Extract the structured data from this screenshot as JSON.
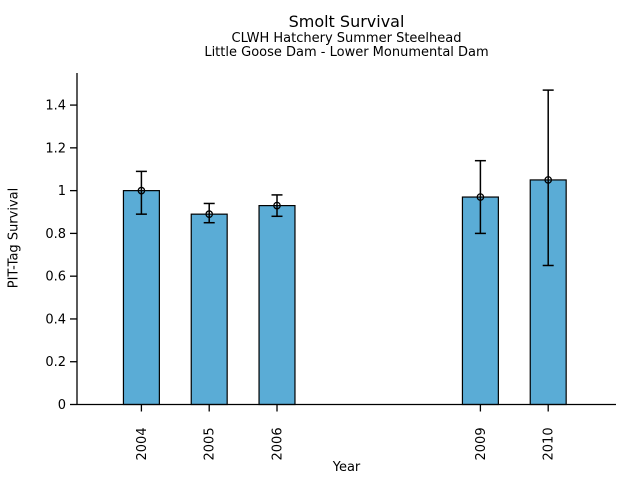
{
  "chart_data": {
    "type": "bar",
    "title": "Smolt Survival",
    "subtitle_line1": "CLWH Hatchery Summer Steelhead",
    "subtitle_line2": "Little Goose Dam - Lower Monumental Dam",
    "xlabel": "Year",
    "ylabel": "PIT-Tag Survival",
    "categories": [
      "2004",
      "2005",
      "2006",
      "2009",
      "2010"
    ],
    "x_values": [
      2004,
      2005,
      2006,
      2009,
      2010
    ],
    "values": [
      1.0,
      0.89,
      0.93,
      0.97,
      1.05
    ],
    "error_low": [
      0.89,
      0.85,
      0.88,
      0.8,
      0.65
    ],
    "error_high": [
      1.09,
      0.94,
      0.98,
      1.14,
      1.47
    ],
    "ytick_labels": [
      "0",
      "0.2",
      "0.4",
      "0.6",
      "0.8",
      "1",
      "1.2",
      "1.4"
    ],
    "ytick_values": [
      0,
      0.2,
      0.4,
      0.6,
      0.8,
      1.0,
      1.2,
      1.4
    ],
    "ylim": [
      0,
      1.55
    ],
    "xlim": [
      2003.05,
      2011.0
    ],
    "bar_width_years": 0.53,
    "bar_fill_color": "#5AACD6",
    "bar_edge_color": "#000000",
    "axis_color": "#000000",
    "marker": "open-circle",
    "grid": false,
    "legend_position": "none"
  }
}
